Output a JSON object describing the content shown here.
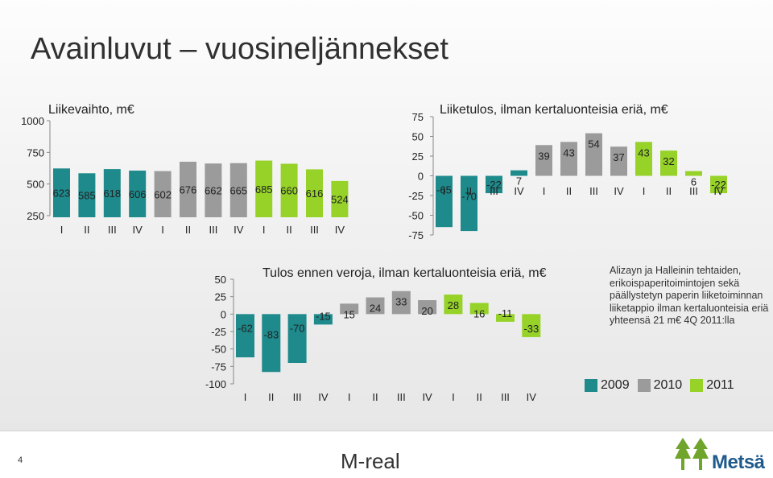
{
  "page_title": "Avainluvut – vuosineljännekset",
  "note": "Alizayn ja Halleinin tehtaiden, erikoispaperitoimintojen sekä päällystetyn paperin liiketoiminnan liiketappio ilman kertaluonteisia eriä yhteensä 21 m€ 4Q 2011:lla",
  "legend": [
    "2009",
    "2010",
    "2011"
  ],
  "colors": {
    "2009": "#1e8a8c",
    "2010": "#9b9b9b",
    "2011": "#96d228"
  },
  "footer": {
    "page_number": "4",
    "brand": "M-real",
    "logo_text": "Metsä"
  },
  "chart_data": [
    {
      "type": "bar",
      "title": "Liikevaihto, m€",
      "categories": [
        "I",
        "II",
        "III",
        "IV",
        "I",
        "II",
        "III",
        "IV",
        "I",
        "II",
        "III",
        "IV"
      ],
      "groups": [
        "2009",
        "2009",
        "2009",
        "2009",
        "2010",
        "2010",
        "2010",
        "2010",
        "2011",
        "2011",
        "2011",
        "2011"
      ],
      "values": [
        623,
        585,
        618,
        606,
        602,
        676,
        662,
        665,
        685,
        660,
        616,
        524
      ],
      "ylim": [
        250,
        1000
      ],
      "yticks": [
        "250",
        "500",
        "750",
        "1000"
      ],
      "tick_values": [
        250,
        500,
        750,
        1000
      ]
    },
    {
      "type": "bar",
      "title": "Liiketulos, ilman kertaluonteisia eriä, m€",
      "categories": [
        "I",
        "II",
        "III",
        "IV",
        "I",
        "II",
        "III",
        "IV",
        "I",
        "II",
        "III",
        "IV"
      ],
      "groups": [
        "2009",
        "2009",
        "2009",
        "2009",
        "2010",
        "2010",
        "2010",
        "2010",
        "2011",
        "2011",
        "2011",
        "2011"
      ],
      "values": [
        -65,
        -70,
        -22,
        7,
        39,
        43,
        54,
        37,
        43,
        32,
        6,
        -22
      ],
      "ylim": [
        -75,
        75
      ],
      "yticks": [
        "-75",
        "-50",
        "-25",
        "0",
        "25",
        "50",
        "75"
      ],
      "tick_values": [
        -75,
        -50,
        -25,
        0,
        25,
        50,
        75
      ]
    },
    {
      "type": "bar",
      "title": "Tulos ennen veroja, ilman kertaluonteisia eriä, m€",
      "categories": [
        "I",
        "II",
        "III",
        "IV",
        "I",
        "II",
        "III",
        "IV",
        "I",
        "II",
        "III",
        "IV"
      ],
      "groups": [
        "2009",
        "2009",
        "2009",
        "2009",
        "2010",
        "2010",
        "2010",
        "2010",
        "2011",
        "2011",
        "2011",
        "2011"
      ],
      "values": [
        -62,
        -83,
        -70,
        -15,
        15,
        24,
        33,
        20,
        28,
        16,
        -11,
        -33
      ],
      "ylim": [
        -100,
        50
      ],
      "yticks": [
        "-100",
        "-75",
        "-50",
        "-25",
        "0",
        "25",
        "50"
      ],
      "tick_values": [
        -100,
        -75,
        -50,
        -25,
        0,
        25,
        50
      ]
    }
  ]
}
